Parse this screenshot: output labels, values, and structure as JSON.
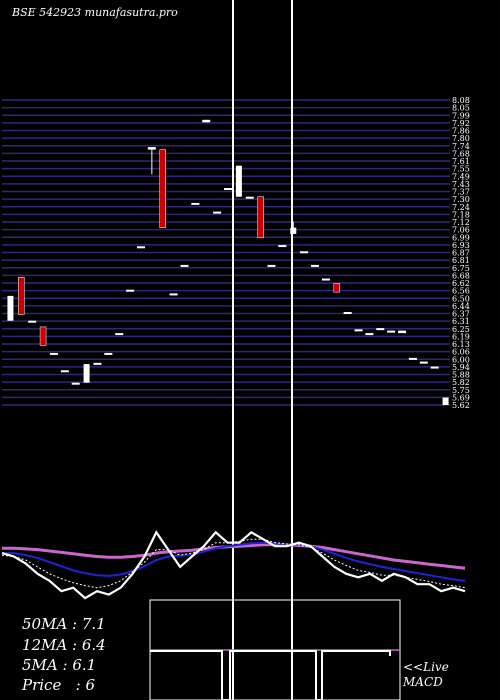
{
  "header": {
    "brand": "BSE 542923 munafasutra.pro"
  },
  "summary": {
    "ma50": "50MA : 7.1",
    "ma12": "12MA : 6.4",
    "ma5": "5MA : 6.1",
    "price": "Price   : 6"
  },
  "macd_label": {
    "line1": "<<Live",
    "line2": "MACD"
  },
  "colors": {
    "background": "#000000",
    "grid": "#2a2a7a",
    "up": "#ffffff",
    "down": "#cc0000",
    "ma_long": "#cc66cc",
    "ma_mid": "#2222dd",
    "ma_short": "#ffffff",
    "separator": "#ffffff"
  },
  "chart_data": {
    "type": "candlestick",
    "ylim": [
      5.62,
      8.08
    ],
    "y_tick_labels": [
      "8.08",
      "8.05",
      "7.99",
      "7.92",
      "7.86",
      "7.80",
      "7.74",
      "7.68",
      "7.61",
      "7.55",
      "7.49",
      "7.43",
      "7.37",
      "7.30",
      "7.24",
      "7.18",
      "7.12",
      "7.06",
      "6.99",
      "6.93",
      "6.87",
      "6.81",
      "6.75",
      "6.68",
      "6.62",
      "6.56",
      "6.50",
      "6.44",
      "6.37",
      "6.31",
      "6.25",
      "6.19",
      "6.13",
      "6.06",
      "6.00",
      "5.94",
      "5.88",
      "5.82",
      "5.75",
      "5.69",
      "5.62"
    ],
    "candles": [
      {
        "o": 6.5,
        "h": 6.5,
        "l": 6.3,
        "c": 6.3,
        "color": "up"
      },
      {
        "o": 6.65,
        "h": 6.65,
        "l": 6.35,
        "c": 6.35,
        "color": "down"
      },
      {
        "o": 6.3,
        "h": 6.3,
        "l": 6.3,
        "c": 6.3,
        "color": "up"
      },
      {
        "o": 6.25,
        "h": 6.25,
        "l": 6.1,
        "c": 6.1,
        "color": "down"
      },
      {
        "o": 6.04,
        "h": 6.04,
        "l": 6.04,
        "c": 6.04,
        "color": "up"
      },
      {
        "o": 5.9,
        "h": 5.9,
        "l": 5.9,
        "c": 5.9,
        "color": "up"
      },
      {
        "o": 5.8,
        "h": 5.8,
        "l": 5.8,
        "c": 5.8,
        "color": "up"
      },
      {
        "o": 5.8,
        "h": 5.95,
        "l": 5.8,
        "c": 5.95,
        "color": "up"
      },
      {
        "o": 5.96,
        "h": 5.96,
        "l": 5.96,
        "c": 5.96,
        "color": "up"
      },
      {
        "o": 6.04,
        "h": 6.04,
        "l": 6.04,
        "c": 6.04,
        "color": "up"
      },
      {
        "o": 6.2,
        "h": 6.2,
        "l": 6.2,
        "c": 6.2,
        "color": "up"
      },
      {
        "o": 6.55,
        "h": 6.55,
        "l": 6.55,
        "c": 6.55,
        "color": "up"
      },
      {
        "o": 6.9,
        "h": 6.9,
        "l": 6.9,
        "c": 6.9,
        "color": "up"
      },
      {
        "o": 7.7,
        "h": 7.7,
        "l": 7.48,
        "c": 7.68,
        "color": "up"
      },
      {
        "o": 7.68,
        "h": 7.68,
        "l": 7.05,
        "c": 7.05,
        "color": "down"
      },
      {
        "o": 6.52,
        "h": 6.52,
        "l": 6.52,
        "c": 6.52,
        "color": "up"
      },
      {
        "o": 6.75,
        "h": 6.75,
        "l": 6.75,
        "c": 6.75,
        "color": "up"
      },
      {
        "o": 7.25,
        "h": 7.25,
        "l": 7.25,
        "c": 7.25,
        "color": "up"
      },
      {
        "o": 7.9,
        "h": 7.92,
        "l": 7.9,
        "c": 7.92,
        "color": "up"
      },
      {
        "o": 7.18,
        "h": 7.18,
        "l": 7.18,
        "c": 7.18,
        "color": "up"
      },
      {
        "o": 7.37,
        "h": 7.37,
        "l": 7.37,
        "c": 7.37,
        "color": "up"
      },
      {
        "o": 7.55,
        "h": 7.55,
        "l": 7.3,
        "c": 7.3,
        "color": "up"
      },
      {
        "o": 7.3,
        "h": 7.3,
        "l": 7.3,
        "c": 7.3,
        "color": "up"
      },
      {
        "o": 7.3,
        "h": 7.3,
        "l": 6.97,
        "c": 6.97,
        "color": "down"
      },
      {
        "o": 6.75,
        "h": 6.75,
        "l": 6.75,
        "c": 6.75,
        "color": "up"
      },
      {
        "o": 6.91,
        "h": 6.91,
        "l": 6.91,
        "c": 6.91,
        "color": "up"
      },
      {
        "o": 7.0,
        "h": 7.1,
        "l": 7.0,
        "c": 7.05,
        "color": "up"
      },
      {
        "o": 6.86,
        "h": 6.86,
        "l": 6.86,
        "c": 6.86,
        "color": "up"
      },
      {
        "o": 6.75,
        "h": 6.75,
        "l": 6.75,
        "c": 6.75,
        "color": "up"
      },
      {
        "o": 6.64,
        "h": 6.64,
        "l": 6.64,
        "c": 6.64,
        "color": "up"
      },
      {
        "o": 6.6,
        "h": 6.6,
        "l": 6.53,
        "c": 6.53,
        "color": "down"
      },
      {
        "o": 6.37,
        "h": 6.37,
        "l": 6.37,
        "c": 6.37,
        "color": "up"
      },
      {
        "o": 6.23,
        "h": 6.23,
        "l": 6.23,
        "c": 6.23,
        "color": "up"
      },
      {
        "o": 6.2,
        "h": 6.2,
        "l": 6.2,
        "c": 6.2,
        "color": "up"
      },
      {
        "o": 6.24,
        "h": 6.24,
        "l": 6.24,
        "c": 6.24,
        "color": "up"
      },
      {
        "o": 6.22,
        "h": 6.22,
        "l": 6.22,
        "c": 6.22,
        "color": "up"
      },
      {
        "o": 6.22,
        "h": 6.22,
        "l": 6.2,
        "c": 6.2,
        "color": "up"
      },
      {
        "o": 6.0,
        "h": 6.0,
        "l": 6.0,
        "c": 6.0,
        "color": "up"
      },
      {
        "o": 5.97,
        "h": 5.97,
        "l": 5.97,
        "c": 5.97,
        "color": "up"
      },
      {
        "o": 5.93,
        "h": 5.93,
        "l": 5.93,
        "c": 5.93,
        "color": "up"
      },
      {
        "o": 5.68,
        "h": 5.68,
        "l": 5.62,
        "c": 5.62,
        "color": "up"
      }
    ],
    "indicator_series": [
      {
        "key": "price",
        "values": [
          6.25,
          6.2,
          6.1,
          5.95,
          5.85,
          5.7,
          5.75,
          5.6,
          5.7,
          5.65,
          5.75,
          5.95,
          6.2,
          6.55,
          6.3,
          6.05,
          6.2,
          6.35,
          6.55,
          6.4,
          6.4,
          6.55,
          6.45,
          6.35,
          6.35,
          6.4,
          6.35,
          6.2,
          6.05,
          5.95,
          5.9,
          5.95,
          5.85,
          5.95,
          5.9,
          5.8,
          5.8,
          5.7,
          5.75,
          5.7
        ]
      },
      {
        "key": "ma_short",
        "values": [
          6.22,
          6.2,
          6.15,
          6.05,
          5.95,
          5.88,
          5.82,
          5.78,
          5.75,
          5.78,
          5.85,
          5.98,
          6.12,
          6.3,
          6.3,
          6.22,
          6.25,
          6.3,
          6.4,
          6.4,
          6.42,
          6.45,
          6.45,
          6.4,
          6.38,
          6.37,
          6.33,
          6.25,
          6.15,
          6.07,
          6.0,
          5.97,
          5.93,
          5.93,
          5.9,
          5.87,
          5.84,
          5.8,
          5.78,
          5.75
        ]
      },
      {
        "key": "ma_mid",
        "values": [
          6.25,
          6.25,
          6.22,
          6.18,
          6.12,
          6.06,
          6.0,
          5.96,
          5.93,
          5.92,
          5.94,
          5.99,
          6.06,
          6.15,
          6.2,
          6.21,
          6.23,
          6.27,
          6.32,
          6.35,
          6.37,
          6.39,
          6.4,
          6.39,
          6.38,
          6.37,
          6.35,
          6.3,
          6.24,
          6.18,
          6.13,
          6.09,
          6.05,
          6.02,
          5.99,
          5.96,
          5.93,
          5.9,
          5.87,
          5.85
        ]
      },
      {
        "key": "ma_long",
        "values": [
          6.32,
          6.32,
          6.31,
          6.3,
          6.28,
          6.26,
          6.24,
          6.22,
          6.2,
          6.19,
          6.19,
          6.2,
          6.22,
          6.25,
          6.27,
          6.28,
          6.29,
          6.31,
          6.33,
          6.34,
          6.35,
          6.36,
          6.37,
          6.37,
          6.37,
          6.36,
          6.35,
          6.33,
          6.3,
          6.27,
          6.24,
          6.21,
          6.18,
          6.15,
          6.13,
          6.11,
          6.09,
          6.07,
          6.05,
          6.03
        ]
      }
    ],
    "indicator_ylim": [
      5.5,
      6.8
    ]
  }
}
